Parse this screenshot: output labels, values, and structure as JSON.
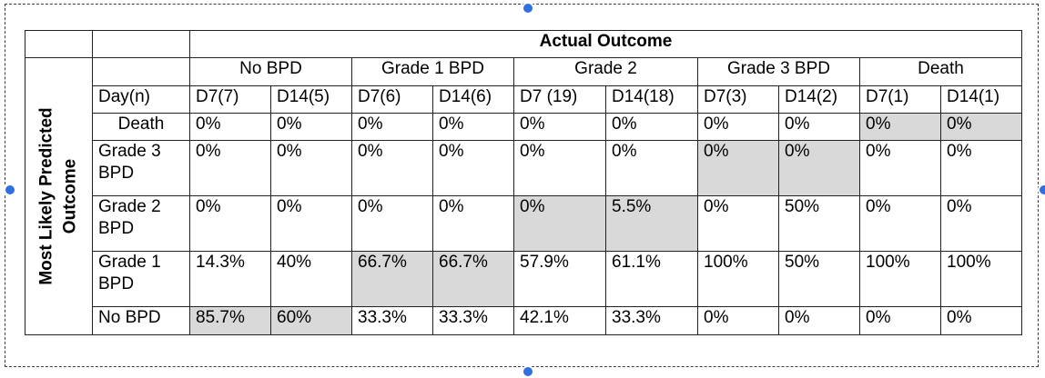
{
  "table": {
    "header": {
      "actual_outcome": "Actual Outcome",
      "day_label": "Day(n)",
      "groups": [
        "No BPD",
        "Grade 1 BPD",
        "Grade 2",
        "Grade 3 BPD",
        "Death"
      ],
      "subheaders": [
        "D7(7)",
        "D14(5)",
        "D7(6)",
        "D14(6)",
        "D7 (19)",
        "D14(18)",
        "D7(3)",
        "D14(2)",
        "D7(1)",
        "D14(1)"
      ]
    },
    "row_axis_label": "Most Likely Predicted Outcome",
    "rows": [
      {
        "label": "Death",
        "values": [
          "0%",
          "0%",
          "0%",
          "0%",
          "0%",
          "0%",
          "0%",
          "0%",
          "0%",
          "0%"
        ]
      },
      {
        "label": "Grade 3 BPD",
        "values": [
          "0%",
          "0%",
          "0%",
          "0%",
          "0%",
          "0%",
          "0%",
          "0%",
          "0%",
          "0%"
        ]
      },
      {
        "label": "Grade 2 BPD",
        "values": [
          "0%",
          "0%",
          "0%",
          "0%",
          "0%",
          "5.5%",
          "0%",
          "50%",
          "0%",
          "0%"
        ]
      },
      {
        "label": "Grade 1 BPD",
        "values": [
          "14.3%",
          "40%",
          "66.7%",
          "66.7%",
          "57.9%",
          "61.1%",
          "100%",
          "50%",
          "100%",
          "100%"
        ]
      },
      {
        "label": "No BPD",
        "values": [
          "85.7%",
          "60%",
          "33.3%",
          "33.3%",
          "42.1%",
          "33.3%",
          "0%",
          "0%",
          "0%",
          "0%"
        ]
      }
    ],
    "highlight_color": "#d9d9d9"
  }
}
